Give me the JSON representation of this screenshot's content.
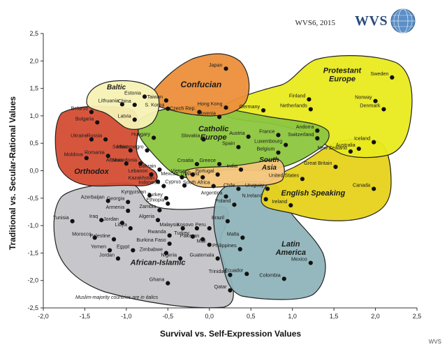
{
  "header": {
    "survey": "WVS6, 2015",
    "logo_text": "WVS"
  },
  "note": "Muslim-majority countries are in italics",
  "corner_mark": "WVS",
  "chart_data": {
    "type": "scatter",
    "title": "",
    "xlabel": "Survival vs. Self-Expression Values",
    "ylabel": "Traditional vs. Secular-Rational Values",
    "xlim": [
      -2.0,
      2.5
    ],
    "ylim": [
      -2.5,
      2.5
    ],
    "grid": false,
    "legend": "none",
    "x_ticks": [
      "-2,0",
      "-1,5",
      "-1,0",
      "-0,5",
      "0,0",
      "0,5",
      "1,0",
      "1,5",
      "2,0",
      "2,5"
    ],
    "x_tick_values": [
      -2.0,
      -1.5,
      -1.0,
      -0.5,
      0.0,
      0.5,
      1.0,
      1.5,
      2.0,
      2.5
    ],
    "y_ticks": [
      "2,5",
      "2,0",
      "1,5",
      "1,0",
      "0,5",
      "0,0",
      "-0,5",
      "-1,0",
      "-1,5",
      "-2,0",
      "-2,5"
    ],
    "y_tick_values": [
      2.5,
      2.0,
      1.5,
      1.0,
      0.5,
      0.0,
      -0.5,
      -1.0,
      -1.5,
      -2.0,
      -2.5
    ],
    "regions": [
      {
        "name": "African-Islamic",
        "color": "#c4c4c8",
        "label_xy": [
          -0.62,
          -1.72
        ]
      },
      {
        "name": "Latin America",
        "color": "#8fb4bb",
        "label_xy": [
          0.98,
          -1.38
        ]
      },
      {
        "name": "English Speaking",
        "color": "#e6d21a",
        "label_xy": [
          1.25,
          -0.45
        ]
      },
      {
        "name": "Protestant Europe",
        "color": "#e9ea1e",
        "label_xy": [
          1.6,
          1.78
        ]
      },
      {
        "name": "Catholic Europe",
        "color": "#8cc63e",
        "label_xy": [
          0.05,
          0.72
        ]
      },
      {
        "name": "Orthodox",
        "color": "#d44d33",
        "label_xy": [
          -1.42,
          -0.06
        ]
      },
      {
        "name": "Confucian",
        "color": "#ec8f3a",
        "label_xy": [
          -0.1,
          1.52
        ]
      },
      {
        "name": "Baltic",
        "color": "#f7f2b4",
        "label_xy": [
          -1.12,
          1.48
        ]
      },
      {
        "name": "South Asia",
        "color": "#f4c57a",
        "label_xy": [
          0.72,
          0.16
        ]
      }
    ],
    "points": [
      {
        "label": "Japan",
        "x": 0.2,
        "y": 1.86
      },
      {
        "label": "Hong Kong",
        "x": 0.2,
        "y": 1.15
      },
      {
        "label": "Taiwan",
        "x": -0.52,
        "y": 1.28
      },
      {
        "label": "S. Korea",
        "x": -0.5,
        "y": 1.13
      },
      {
        "name_hint": "China",
        "label": "China",
        "x": -0.9,
        "y": 1.2
      },
      {
        "label": "Estonia",
        "x": -0.78,
        "y": 1.35
      },
      {
        "label": "Lithuania",
        "x": -1.05,
        "y": 1.21
      },
      {
        "label": "Latvia",
        "x": -0.9,
        "y": 0.93
      },
      {
        "label": "Belarus",
        "x": -1.42,
        "y": 1.07
      },
      {
        "label": "Bulgaria",
        "x": -1.35,
        "y": 0.88
      },
      {
        "label": "Ukraine",
        "x": -1.42,
        "y": 0.57
      },
      {
        "label": "Russia",
        "x": -1.25,
        "y": 0.57
      },
      {
        "label": "Moldova",
        "x": -1.48,
        "y": 0.23
      },
      {
        "label": "Serbia",
        "x": -0.95,
        "y": 0.37
      },
      {
        "label": "Montenegro",
        "x": -0.75,
        "y": 0.37
      },
      {
        "label": "Albania",
        "x": -1.0,
        "y": 0.13
      },
      {
        "label": "Macedonia",
        "x": -0.83,
        "y": 0.13
      },
      {
        "label": "Romania",
        "x": -1.22,
        "y": 0.27
      },
      {
        "label": "Georgia",
        "x": -0.98,
        "y": -0.57
      },
      {
        "label": "Armenia",
        "x": -0.98,
        "y": -0.73
      },
      {
        "label": "Hungary",
        "x": -0.67,
        "y": 0.6
      },
      {
        "label": "Czech Rep.",
        "x": -0.12,
        "y": 1.07
      },
      {
        "label": "Slovenia",
        "x": 0.12,
        "y": 0.98
      },
      {
        "label": "Slovakia",
        "x": -0.07,
        "y": 0.57
      },
      {
        "label": "Croatia",
        "x": -0.15,
        "y": 0.12
      },
      {
        "label": "Greece",
        "x": 0.12,
        "y": 0.12
      },
      {
        "label": "Spain",
        "x": 0.35,
        "y": 0.43
      },
      {
        "label": "Portugal",
        "x": 0.1,
        "y": -0.07
      },
      {
        "label": "Austria",
        "x": 0.47,
        "y": 0.62
      },
      {
        "label": "France",
        "x": 0.83,
        "y": 0.65
      },
      {
        "label": "Luxembourg",
        "x": 0.92,
        "y": 0.47
      },
      {
        "label": "Belgium",
        "x": 0.83,
        "y": 0.33
      },
      {
        "label": "Andorra",
        "x": 1.3,
        "y": 0.73
      },
      {
        "label": "Switzerland",
        "x": 1.3,
        "y": 0.59
      },
      {
        "label": "Germany",
        "x": 0.65,
        "y": 1.1
      },
      {
        "label": "Finland",
        "x": 1.2,
        "y": 1.3
      },
      {
        "label": "Netherlands",
        "x": 1.22,
        "y": 1.12
      },
      {
        "label": "Norway",
        "x": 2.0,
        "y": 1.27
      },
      {
        "label": "Denmark",
        "x": 2.1,
        "y": 1.12
      },
      {
        "label": "Sweden",
        "x": 2.2,
        "y": 1.7
      },
      {
        "label": "Iceland",
        "x": 1.98,
        "y": 0.52
      },
      {
        "label": "Australia",
        "x": 1.8,
        "y": 0.4
      },
      {
        "label": "New Zealand",
        "x": 1.7,
        "y": 0.35
      },
      {
        "label": "Great Britain",
        "x": 1.52,
        "y": 0.07
      },
      {
        "label": "United States",
        "x": 1.12,
        "y": -0.15
      },
      {
        "label": "Canada",
        "x": 1.98,
        "y": -0.33
      },
      {
        "label": "N.Ireland",
        "x": 0.68,
        "y": -0.52
      },
      {
        "label": "Ireland",
        "x": 0.98,
        "y": -0.63
      },
      {
        "label": "India",
        "x": 0.38,
        "y": 0.02
      },
      {
        "label": "Thailand",
        "x": -0.08,
        "y": -0.12
      },
      {
        "label": "Vietnam",
        "x": -0.2,
        "y": -0.07
      },
      {
        "label": "Cyprus",
        "x": -0.3,
        "y": -0.27
      },
      {
        "label": "South Africa",
        "x": 0.05,
        "y": -0.28
      },
      {
        "label": "Chile",
        "x": 0.35,
        "y": -0.33
      },
      {
        "label": "Argentina",
        "x": 0.2,
        "y": -0.47
      },
      {
        "label": "Uruguay",
        "x": 0.7,
        "y": -0.33
      },
      {
        "label": "Poland",
        "x": 0.3,
        "y": -0.62
      },
      {
        "label": "Brazil",
        "x": 0.22,
        "y": -0.92
      },
      {
        "label": "Peru",
        "x": 0.0,
        "y": -1.05
      },
      {
        "label": "Malta",
        "x": 0.4,
        "y": -1.22
      },
      {
        "label": "Philippines",
        "x": 0.37,
        "y": -1.43
      },
      {
        "label": "Guatemala",
        "x": 0.1,
        "y": -1.6
      },
      {
        "label": "Ecuador",
        "x": 0.45,
        "y": -1.88
      },
      {
        "label": "Trinidad",
        "x": 0.25,
        "y": -1.9
      },
      {
        "label": "Colombia",
        "x": 0.9,
        "y": -1.97
      },
      {
        "label": "Mexico",
        "x": 1.22,
        "y": -1.68
      },
      {
        "label": "Qatar",
        "x": 0.25,
        "y": -2.18
      },
      {
        "label": "Lebanon",
        "x": -0.7,
        "y": -0.07
      },
      {
        "label": "Bahrain",
        "x": -0.6,
        "y": 0.02
      },
      {
        "label": "Mexcan",
        "x": -0.33,
        "y": -0.12
      },
      {
        "label": "Kazakhstan",
        "x": -0.62,
        "y": -0.2
      },
      {
        "label": "Indonesia",
        "x": -0.55,
        "y": -0.28
      },
      {
        "label": "Kyrgyzstan",
        "x": -0.72,
        "y": -0.45
      },
      {
        "label": "Turkey",
        "x": -0.52,
        "y": -0.5
      },
      {
        "label": "Ethiopia",
        "x": -0.5,
        "y": -0.6
      },
      {
        "label": "Zambia",
        "x": -0.6,
        "y": -0.72
      },
      {
        "label": "Algeria",
        "x": -0.62,
        "y": -0.9
      },
      {
        "label": "Azerbaijan",
        "x": -1.22,
        "y": -0.55
      },
      {
        "label": "Tunisia",
        "x": -1.65,
        "y": -0.92
      },
      {
        "label": "Iraq",
        "x": -1.3,
        "y": -0.9
      },
      {
        "label": "Jordan",
        "x": -1.05,
        "y": -0.95
      },
      {
        "label": "Morocco",
        "x": -1.38,
        "y": -1.22
      },
      {
        "label": "Palestine",
        "x": -1.15,
        "y": -1.25
      },
      {
        "label": "Yemen",
        "x": -1.2,
        "y": -1.45
      },
      {
        "label": "Libya",
        "x": -0.95,
        "y": -1.05
      },
      {
        "label": "Egypt",
        "x": -0.92,
        "y": -1.45
      },
      {
        "label": "Jordan",
        "x": -1.1,
        "y": -1.6
      },
      {
        "label": "Rwanda",
        "x": -0.48,
        "y": -1.18
      },
      {
        "label": "Burkina Faso",
        "x": -0.48,
        "y": -1.33
      },
      {
        "label": "Malaysia",
        "x": -0.32,
        "y": -1.05
      },
      {
        "label": "Kosovo",
        "x": -0.15,
        "y": -1.05
      },
      {
        "label": "Turkey",
        "x": -0.2,
        "y": -1.2
      },
      {
        "label": "Pakistan",
        "x": -0.08,
        "y": -1.25
      },
      {
        "label": "Mali",
        "x": 0.0,
        "y": -1.35
      },
      {
        "label": "Zimbabwe",
        "x": -0.52,
        "y": -1.5
      },
      {
        "label": "Nigeria",
        "x": -0.35,
        "y": -1.6
      },
      {
        "label": "Ghana",
        "x": -0.5,
        "y": -2.05
      }
    ]
  }
}
